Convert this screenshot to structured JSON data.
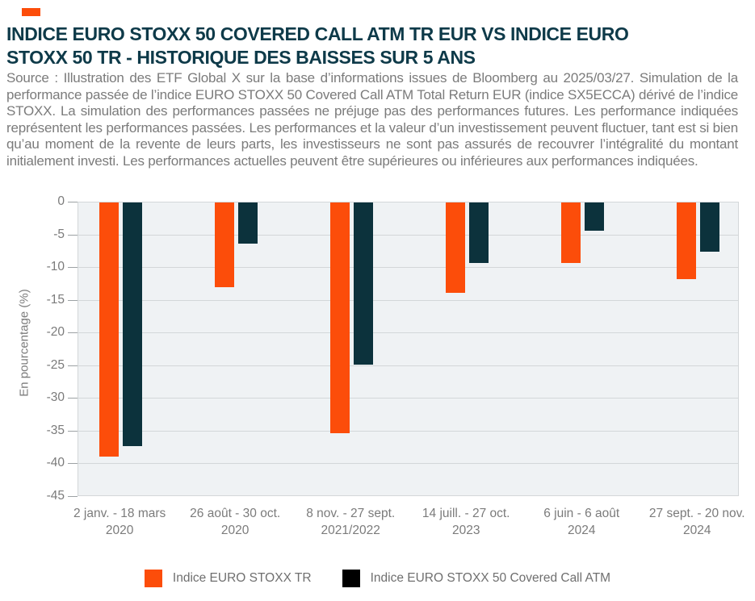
{
  "brand": {
    "mark_color": "#FC4D0A"
  },
  "title": {
    "line1": "INDICE EURO STOXX 50 COVERED CALL ATM TR EUR VS INDICE EURO",
    "line2": "STOXX 50 TR - HISTORIQUE DES BAISSES SUR 5 ANS"
  },
  "source_text": "Source : Illustration des ETF Global X sur la base d’informations issues de Bloomberg au 2025/03/27. Simulation de la performance passée de l’indice EURO STOXX 50 Covered Call ATM Total Return EUR (indice SX5ECCA) dérivé de l’indice STOXX. La simulation des performances passées ne préjuge pas des performances futures. Les performance indiquées représentent les performances passées. Les performances et la valeur d’un investissement peuvent fluctuer, tant est si bien qu’au moment de la revente de leurs parts, les investisseurs ne sont pas assurés de recouvrer l’intégralité du montant initialement investi. Les performances actuelles peuvent être supérieures ou inférieures aux performances indiquées.",
  "chart_data": {
    "type": "bar",
    "title": "INDICE EURO STOXX 50 COVERED CALL ATM TR EUR VS INDICE EURO STOXX 50 TR - HISTORIQUE DES BAISSES SUR 5 ANS",
    "xlabel": "",
    "ylabel": "En pourcentage (%)",
    "ylim": [
      -45,
      0
    ],
    "yticks": [
      0,
      -5,
      -10,
      -15,
      -20,
      -25,
      -30,
      -35,
      -40,
      -45
    ],
    "grid": "horizontal",
    "legend_position": "bottom",
    "categories": [
      [
        "2 janv. - 18 mars",
        "2020"
      ],
      [
        "26 août - 30 oct.",
        "2020"
      ],
      [
        "8 nov. - 27 sept.",
        "2021/2022"
      ],
      [
        "14 juill. - 27 oct.",
        "2023"
      ],
      [
        "6 juin - 6 août",
        "2024"
      ],
      [
        "27 sept. - 20 nov.",
        "2024"
      ]
    ],
    "series": [
      {
        "name": "Indice EURO STOXX TR",
        "bar_color": "#FC4D0A",
        "legend_color": "#FC4D0A",
        "values": [
          -38.8,
          -13.0,
          -35.2,
          -13.8,
          -9.3,
          -11.7
        ]
      },
      {
        "name": "Indice EURO STOXX 50 Covered Call ATM",
        "bar_color": "#0C323C",
        "legend_color": "#000000",
        "values": [
          -37.2,
          -6.3,
          -24.8,
          -9.3,
          -4.3,
          -7.5
        ]
      }
    ],
    "colors": {
      "plot_background": "#EFF2F4",
      "gridline": "#D3D7D9",
      "tick_mark": "#9CA1A4",
      "axis_text": "#7B7B7B"
    }
  }
}
